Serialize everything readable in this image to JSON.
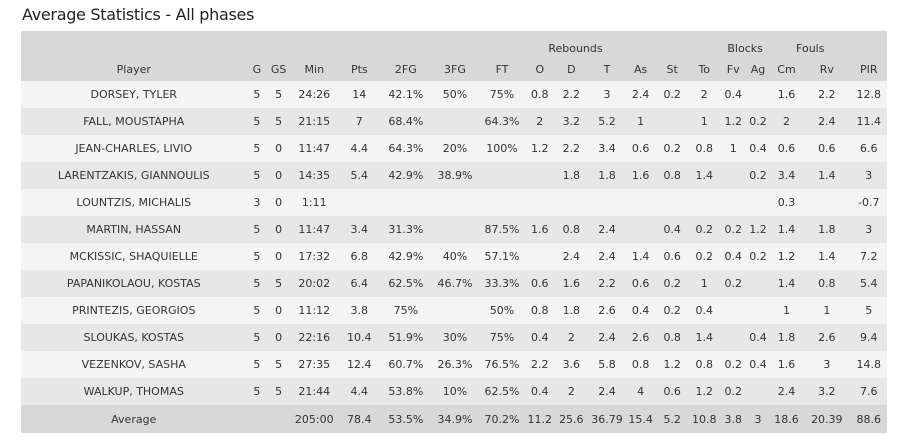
{
  "title": "Average Statistics - All phases",
  "group_headers": {
    "rebounds": "Rebounds",
    "blocks": "Blocks",
    "fouls": "Fouls"
  },
  "columns": [
    "Player",
    "G",
    "GS",
    "Min",
    "Pts",
    "2FG",
    "3FG",
    "FT",
    "O",
    "D",
    "T",
    "As",
    "St",
    "To",
    "Fv",
    "Ag",
    "Cm",
    "Rv",
    "PIR"
  ],
  "rows": [
    [
      "DORSEY, TYLER",
      "5",
      "5",
      "24:26",
      "14",
      "42.1%",
      "50%",
      "75%",
      "0.8",
      "2.2",
      "3",
      "2.4",
      "0.2",
      "2",
      "0.4",
      "",
      "1.6",
      "2.2",
      "12.8"
    ],
    [
      "FALL, MOUSTAPHA",
      "5",
      "5",
      "21:15",
      "7",
      "68.4%",
      "",
      "64.3%",
      "2",
      "3.2",
      "5.2",
      "1",
      "",
      "1",
      "1.2",
      "0.2",
      "2",
      "2.4",
      "11.4"
    ],
    [
      "JEAN-CHARLES, LIVIO",
      "5",
      "0",
      "11:47",
      "4.4",
      "64.3%",
      "20%",
      "100%",
      "1.2",
      "2.2",
      "3.4",
      "0.6",
      "0.2",
      "0.8",
      "1",
      "0.4",
      "0.6",
      "0.6",
      "6.6"
    ],
    [
      "LARENTZAKIS, GIANNOULIS",
      "5",
      "0",
      "14:35",
      "5.4",
      "42.9%",
      "38.9%",
      "",
      "",
      "1.8",
      "1.8",
      "1.6",
      "0.8",
      "1.4",
      "",
      "0.2",
      "3.4",
      "1.4",
      "3"
    ],
    [
      "LOUNTZIS, MICHALIS",
      "3",
      "0",
      "1:11",
      "",
      "",
      "",
      "",
      "",
      "",
      "",
      "",
      "",
      "",
      "",
      "",
      "0.3",
      "",
      "-0.7"
    ],
    [
      "MARTIN, HASSAN",
      "5",
      "0",
      "11:47",
      "3.4",
      "31.3%",
      "",
      "87.5%",
      "1.6",
      "0.8",
      "2.4",
      "",
      "0.4",
      "0.2",
      "0.2",
      "1.2",
      "1.4",
      "1.8",
      "3"
    ],
    [
      "MCKISSIC, SHAQUIELLE",
      "5",
      "0",
      "17:32",
      "6.8",
      "42.9%",
      "40%",
      "57.1%",
      "",
      "2.4",
      "2.4",
      "1.4",
      "0.6",
      "0.2",
      "0.4",
      "0.2",
      "1.2",
      "1.4",
      "7.2"
    ],
    [
      "PAPANIKOLAOU, KOSTAS",
      "5",
      "5",
      "20:02",
      "6.4",
      "62.5%",
      "46.7%",
      "33.3%",
      "0.6",
      "1.6",
      "2.2",
      "0.6",
      "0.2",
      "1",
      "0.2",
      "",
      "1.4",
      "0.8",
      "5.4"
    ],
    [
      "PRINTEZIS, GEORGIOS",
      "5",
      "0",
      "11:12",
      "3.8",
      "75%",
      "",
      "50%",
      "0.8",
      "1.8",
      "2.6",
      "0.4",
      "0.2",
      "0.4",
      "",
      "",
      "1",
      "1",
      "5"
    ],
    [
      "SLOUKAS, KOSTAS",
      "5",
      "0",
      "22:16",
      "10.4",
      "51.9%",
      "30%",
      "75%",
      "0.4",
      "2",
      "2.4",
      "2.6",
      "0.8",
      "1.4",
      "",
      "0.4",
      "1.8",
      "2.6",
      "9.4"
    ],
    [
      "VEZENKOV, SASHA",
      "5",
      "5",
      "27:35",
      "12.4",
      "60.7%",
      "26.3%",
      "76.5%",
      "2.2",
      "3.6",
      "5.8",
      "0.8",
      "1.2",
      "0.8",
      "0.2",
      "0.4",
      "1.6",
      "3",
      "14.8"
    ],
    [
      "WALKUP, THOMAS",
      "5",
      "5",
      "21:44",
      "4.4",
      "53.8%",
      "10%",
      "62.5%",
      "0.4",
      "2",
      "2.4",
      "4",
      "0.6",
      "1.2",
      "0.2",
      "",
      "2.4",
      "3.2",
      "7.6"
    ]
  ],
  "average": [
    "Average",
    "",
    "",
    "205:00",
    "78.4",
    "53.5%",
    "34.9%",
    "70.2%",
    "11.2",
    "25.6",
    "36.79",
    "15.4",
    "5.2",
    "10.8",
    "3.8",
    "3",
    "18.6",
    "20.39",
    "88.6"
  ]
}
